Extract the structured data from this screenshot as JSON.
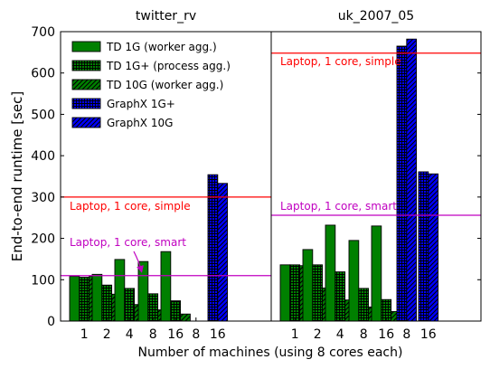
{
  "colors": {
    "td_green": "#008000",
    "graphx_blue": "#0000ff",
    "simple_line": "#ff0000",
    "smart_line": "#c000c0",
    "axis": "#000000"
  },
  "chart_data": {
    "type": "bar",
    "ylabel": "End-to-end runtime [sec]",
    "xlabel": "Number of machines (using 8 cores each)",
    "ylim": [
      0,
      700
    ],
    "yticks": [
      0,
      100,
      200,
      300,
      400,
      500,
      600,
      700
    ],
    "grid": false,
    "legend_position": "top-left",
    "legend": [
      {
        "label": "TD 1G (worker agg.)",
        "color": "#008000",
        "pattern": "solid"
      },
      {
        "label": "TD 1G+ (process agg.)",
        "color": "#008000",
        "pattern": "grid"
      },
      {
        "label": "TD 10G (worker agg.)",
        "color": "#008000",
        "pattern": "diagonal"
      },
      {
        "label": "GraphX 1G+",
        "color": "#0000ff",
        "pattern": "grid"
      },
      {
        "label": "GraphX 10G",
        "color": "#0000ff",
        "pattern": "diagonal"
      }
    ],
    "panels": [
      {
        "title": "twitter_rv",
        "categories": [
          "1",
          "2",
          "4",
          "8",
          "16",
          "8",
          "16"
        ],
        "groups": [
          {
            "x": "1",
            "values": [
              108,
              106,
              108
            ]
          },
          {
            "x": "2",
            "values": [
              113,
              87,
              65
            ]
          },
          {
            "x": "4",
            "values": [
              149,
              79,
              40
            ]
          },
          {
            "x": "8",
            "values": [
              144,
              66,
              27
            ]
          },
          {
            "x": "16",
            "values": [
              168,
              49,
              17
            ]
          },
          {
            "x": "8",
            "values": [
              null,
              null
            ]
          },
          {
            "x": "16",
            "values": [
              354,
              333
            ]
          }
        ],
        "reference_lines": [
          {
            "label": "Laptop, 1 core, simple",
            "value": 300,
            "color": "#ff0000"
          },
          {
            "label": "Laptop, 1 core, smart",
            "value": 110,
            "color": "#c000c0"
          }
        ]
      },
      {
        "title": "uk_2007_05",
        "categories": [
          "1",
          "2",
          "4",
          "8",
          "16",
          "8",
          "16"
        ],
        "groups": [
          {
            "x": "1",
            "values": [
              136,
              136,
              134
            ]
          },
          {
            "x": "2",
            "values": [
              173,
              136,
              80
            ]
          },
          {
            "x": "4",
            "values": [
              232,
              119,
              51
            ]
          },
          {
            "x": "8",
            "values": [
              195,
              79,
              34
            ]
          },
          {
            "x": "16",
            "values": [
              230,
              52,
              23
            ]
          },
          {
            "x": "8",
            "values": [
              665,
              682
            ]
          },
          {
            "x": "16",
            "values": [
              361,
              356
            ]
          }
        ],
        "reference_lines": [
          {
            "label": "Laptop, 1 core, simple",
            "value": 648,
            "color": "#ff0000"
          },
          {
            "label": "Laptop, 1 core, smart",
            "value": 256,
            "color": "#c000c0"
          }
        ]
      }
    ]
  }
}
